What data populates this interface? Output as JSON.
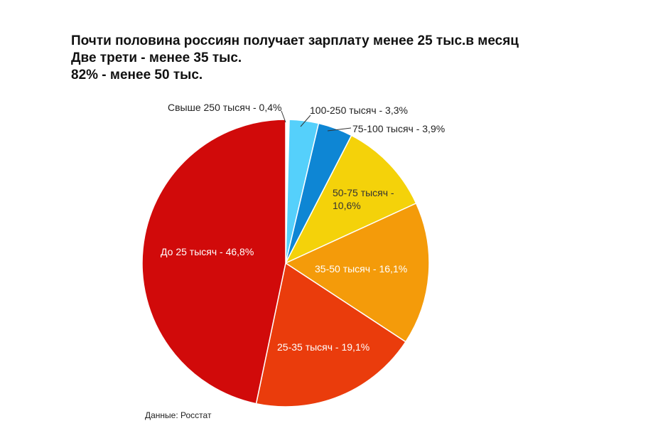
{
  "title": {
    "line1": "Почти половина россиян получает зарплату менее 25 тыс.в месяц",
    "line2": "Две трети - менее 35 тыс.",
    "line3": "82% - менее 50 тыс."
  },
  "source": "Данные: Росстат",
  "chart_data": {
    "type": "pie",
    "start": "top, clockwise",
    "slices": [
      {
        "label": "Свыше 250 тысяч - 0,4%",
        "lines": [
          "Свыше 250 тысяч - 0,4%"
        ],
        "value": 0.4,
        "color": "#ffffff",
        "label_pos": "outside"
      },
      {
        "label": "100-250 тысяч - 3,3%",
        "lines": [
          "100-250 тысяч - 3,3%"
        ],
        "value": 3.3,
        "color": "#55d0fb",
        "label_pos": "outside"
      },
      {
        "label": "75-100 тысяч - 3,9%",
        "lines": [
          "75-100 тысяч - 3,9%"
        ],
        "value": 3.9,
        "color": "#0e86d4",
        "label_pos": "outside"
      },
      {
        "label": "50-75 тысяч - 10,6%",
        "lines": [
          "50-75 тысяч -",
          "10,6%"
        ],
        "value": 10.6,
        "color": "#f4d20a",
        "label_pos": "inside"
      },
      {
        "label": "35-50 тысяч - 16,1%",
        "lines": [
          "35-50 тысяч - 16,1%"
        ],
        "value": 16.1,
        "color": "#f49b0a",
        "label_pos": "inside"
      },
      {
        "label": "25-35 тысяч - 19,1%",
        "lines": [
          "25-35 тысяч - 19,1%"
        ],
        "value": 19.1,
        "color": "#ea3c0c",
        "label_pos": "inside"
      },
      {
        "label": "До 25 тысяч - 46,8%",
        "lines": [
          "До 25 тысяч - 46,8%"
        ],
        "value": 46.8,
        "color": "#d10a0a",
        "label_pos": "inside"
      }
    ]
  }
}
